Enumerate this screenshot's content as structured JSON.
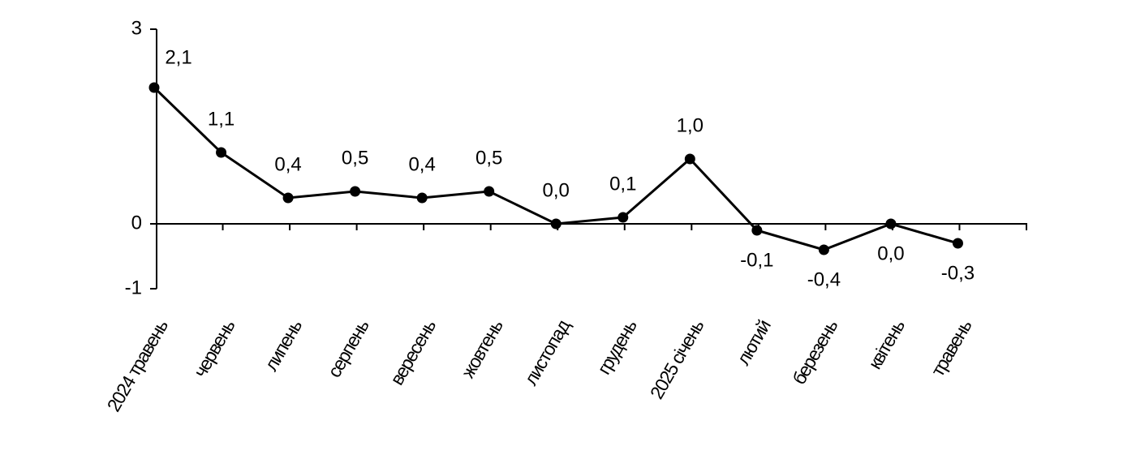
{
  "chart_data": {
    "type": "line",
    "categories": [
      "2024 травень",
      "червень",
      "липень",
      "серпень",
      "вересень",
      "жовтень",
      "листопад",
      "грудень",
      "2025 січень",
      "лютий",
      "березень",
      "квітень",
      "травень"
    ],
    "values": [
      2.1,
      1.1,
      0.4,
      0.5,
      0.4,
      0.5,
      0.0,
      0.1,
      1.0,
      -0.1,
      -0.4,
      0.0,
      -0.3
    ],
    "value_labels": [
      "2,1",
      "1,1",
      "0,4",
      "0,5",
      "0,4",
      "0,5",
      "0,0",
      "0,1",
      "1,0",
      "-0,1",
      "-0,4",
      "0,0",
      "-0,3"
    ],
    "color": "#000000",
    "ylim": [
      -1,
      3
    ],
    "yticks": [
      -1,
      0,
      3
    ],
    "grid": false
  }
}
